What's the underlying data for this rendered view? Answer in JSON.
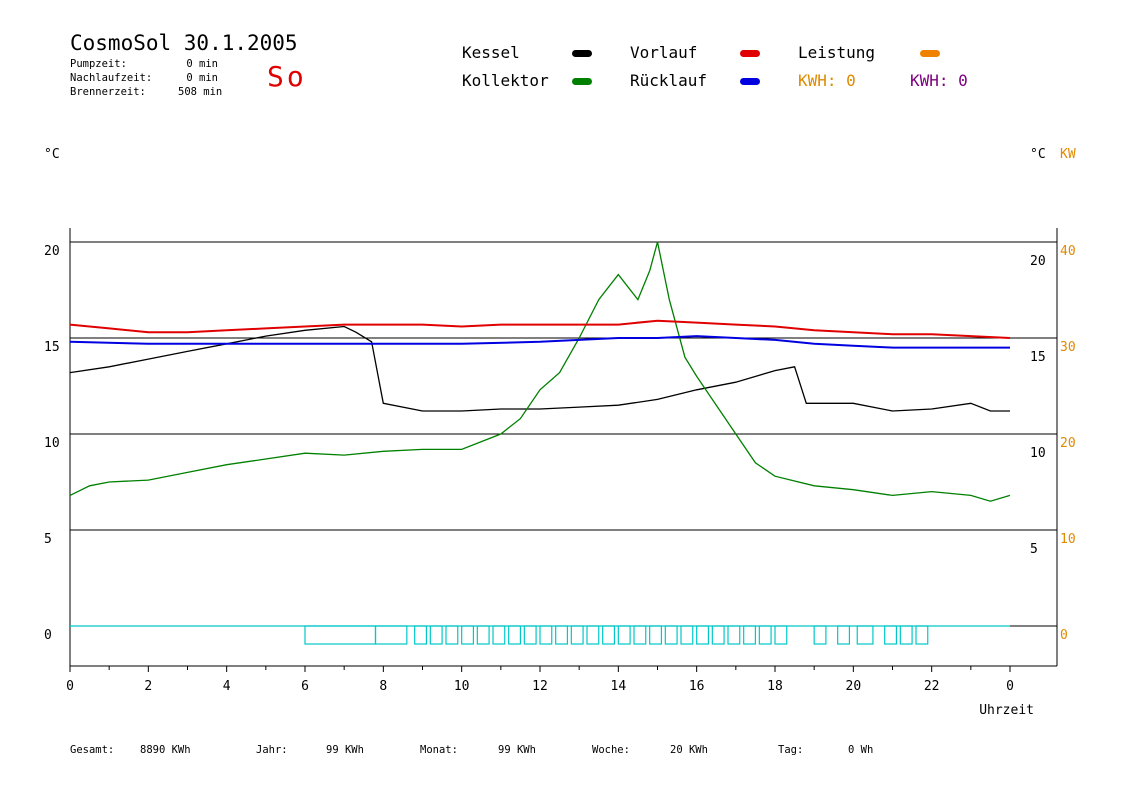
{
  "header": {
    "title": "CosmoSol 30.1.2005",
    "day": "So",
    "stats": [
      {
        "label": "Pumpzeit:",
        "value": "0 min"
      },
      {
        "label": "Nachlaufzeit:",
        "value": "0 min"
      },
      {
        "label": "Brennerzeit:",
        "value": "508 min"
      }
    ]
  },
  "legend": {
    "kessel": {
      "label": "Kessel",
      "color": "#000000"
    },
    "kollektor": {
      "label": "Kollektor",
      "color": "#008000"
    },
    "vorlauf": {
      "label": "Vorlauf",
      "color": "#e00000"
    },
    "ruecklauf": {
      "label": "Rücklauf",
      "color": "#0000e0"
    },
    "leistung": {
      "label": "Leistung",
      "color": "#f08000"
    },
    "kwh_orange": "KWH: 0",
    "kwh_purple": "KWH: 0",
    "kwh_orange_color": "#e08a00",
    "kwh_purple_color": "#800080"
  },
  "units": {
    "left": "°C",
    "right_c": "°C",
    "right_kw": "KW"
  },
  "footer": {
    "gesamt_label": "Gesamt:",
    "gesamt_value": "8890 KWh",
    "jahr_label": "Jahr:",
    "jahr_value": "99 KWh",
    "monat_label": "Monat:",
    "monat_value": "99 KWh",
    "woche_label": "Woche:",
    "woche_value": "20 KWh",
    "tag_label": "Tag:",
    "tag_value": "0 Wh"
  },
  "chart_data": {
    "type": "line",
    "title": "CosmoSol 30.1.2005",
    "xlabel": "Uhrzeit",
    "ylabel": "°C",
    "xlim": [
      0,
      24
    ],
    "ylim": [
      -1,
      20.5
    ],
    "x_ticks": [
      "0",
      "2",
      "4",
      "6",
      "8",
      "10",
      "12",
      "14",
      "16",
      "18",
      "20",
      "22",
      "0"
    ],
    "y_ticks_left": [
      "20",
      "15",
      "10",
      "5",
      "0"
    ],
    "y_ticks_right_c": [
      "20",
      "15",
      "10",
      "5"
    ],
    "y_ticks_right_kw": [
      "40",
      "30",
      "20",
      "10",
      "0"
    ],
    "grid": "horizontal",
    "series": [
      {
        "name": "Kessel",
        "color": "#000000",
        "points": [
          [
            0,
            13.2
          ],
          [
            1,
            13.5
          ],
          [
            2,
            13.9
          ],
          [
            3,
            14.3
          ],
          [
            4,
            14.7
          ],
          [
            5,
            15.1
          ],
          [
            6,
            15.4
          ],
          [
            7,
            15.6
          ],
          [
            7.3,
            15.3
          ],
          [
            7.7,
            14.8
          ],
          [
            8,
            11.6
          ],
          [
            9,
            11.2
          ],
          [
            10,
            11.2
          ],
          [
            11,
            11.3
          ],
          [
            12,
            11.3
          ],
          [
            13,
            11.4
          ],
          [
            14,
            11.5
          ],
          [
            15,
            11.8
          ],
          [
            16,
            12.3
          ],
          [
            17,
            12.7
          ],
          [
            18,
            13.3
          ],
          [
            18.5,
            13.5
          ],
          [
            18.8,
            11.6
          ],
          [
            20,
            11.6
          ],
          [
            21,
            11.2
          ],
          [
            22,
            11.3
          ],
          [
            23,
            11.6
          ],
          [
            23.5,
            11.2
          ],
          [
            24,
            11.2
          ]
        ]
      },
      {
        "name": "Kollektor",
        "color": "#008000",
        "points": [
          [
            0,
            6.8
          ],
          [
            0.5,
            7.3
          ],
          [
            1,
            7.5
          ],
          [
            2,
            7.6
          ],
          [
            3,
            8.0
          ],
          [
            4,
            8.4
          ],
          [
            5,
            8.7
          ],
          [
            6,
            9.0
          ],
          [
            7,
            8.9
          ],
          [
            8,
            9.1
          ],
          [
            9,
            9.2
          ],
          [
            10,
            9.2
          ],
          [
            11,
            10.0
          ],
          [
            11.5,
            10.8
          ],
          [
            12,
            12.3
          ],
          [
            12.5,
            13.2
          ],
          [
            13,
            15.0
          ],
          [
            13.5,
            17.0
          ],
          [
            14,
            18.3
          ],
          [
            14.5,
            17.0
          ],
          [
            14.8,
            18.5
          ],
          [
            15,
            20.0
          ],
          [
            15.3,
            17.0
          ],
          [
            15.7,
            14.0
          ],
          [
            16,
            13.0
          ],
          [
            16.5,
            11.5
          ],
          [
            17,
            10.0
          ],
          [
            17.5,
            8.5
          ],
          [
            18,
            7.8
          ],
          [
            19,
            7.3
          ],
          [
            20,
            7.1
          ],
          [
            21,
            6.8
          ],
          [
            22,
            7.0
          ],
          [
            23,
            6.8
          ],
          [
            23.5,
            6.5
          ],
          [
            24,
            6.8
          ]
        ]
      },
      {
        "name": "Vorlauf",
        "color": "#e00000",
        "points": [
          [
            0,
            15.7
          ],
          [
            1,
            15.5
          ],
          [
            2,
            15.3
          ],
          [
            3,
            15.3
          ],
          [
            4,
            15.4
          ],
          [
            5,
            15.5
          ],
          [
            6,
            15.6
          ],
          [
            7,
            15.7
          ],
          [
            8,
            15.7
          ],
          [
            9,
            15.7
          ],
          [
            10,
            15.6
          ],
          [
            11,
            15.7
          ],
          [
            12,
            15.7
          ],
          [
            13,
            15.7
          ],
          [
            14,
            15.7
          ],
          [
            15,
            15.9
          ],
          [
            16,
            15.8
          ],
          [
            17,
            15.7
          ],
          [
            18,
            15.6
          ],
          [
            19,
            15.4
          ],
          [
            20,
            15.3
          ],
          [
            21,
            15.2
          ],
          [
            22,
            15.2
          ],
          [
            23,
            15.1
          ],
          [
            24,
            15.0
          ]
        ]
      },
      {
        "name": "Rücklauf",
        "color": "#0000e0",
        "points": [
          [
            0,
            14.8
          ],
          [
            2,
            14.7
          ],
          [
            4,
            14.7
          ],
          [
            6,
            14.7
          ],
          [
            8,
            14.7
          ],
          [
            10,
            14.7
          ],
          [
            12,
            14.8
          ],
          [
            13,
            14.9
          ],
          [
            14,
            15.0
          ],
          [
            15,
            15.0
          ],
          [
            16,
            15.1
          ],
          [
            17,
            15.0
          ],
          [
            18,
            14.9
          ],
          [
            19,
            14.7
          ],
          [
            20,
            14.6
          ],
          [
            21,
            14.5
          ],
          [
            22,
            14.5
          ],
          [
            23,
            14.5
          ],
          [
            24,
            14.5
          ]
        ]
      }
    ],
    "pump_pulses": [
      [
        6,
        7.8
      ],
      [
        7.8,
        8.6
      ],
      [
        8.8,
        9.1
      ],
      [
        9.2,
        9.5
      ],
      [
        9.6,
        9.9
      ],
      [
        10,
        10.3
      ],
      [
        10.4,
        10.7
      ],
      [
        10.8,
        11.1
      ],
      [
        11.2,
        11.5
      ],
      [
        11.6,
        11.9
      ],
      [
        12,
        12.3
      ],
      [
        12.4,
        12.7
      ],
      [
        12.8,
        13.1
      ],
      [
        13.2,
        13.5
      ],
      [
        13.6,
        13.9
      ],
      [
        14,
        14.3
      ],
      [
        14.4,
        14.7
      ],
      [
        14.8,
        15.1
      ],
      [
        15.2,
        15.5
      ],
      [
        15.6,
        15.9
      ],
      [
        16,
        16.3
      ],
      [
        16.4,
        16.7
      ],
      [
        16.8,
        17.1
      ],
      [
        17.2,
        17.5
      ],
      [
        17.6,
        17.9
      ],
      [
        18,
        18.3
      ],
      [
        19,
        19.3
      ],
      [
        19.6,
        19.9
      ],
      [
        20.1,
        20.5
      ],
      [
        20.8,
        21.1
      ],
      [
        21.2,
        21.5
      ],
      [
        21.6,
        21.9
      ]
    ]
  }
}
